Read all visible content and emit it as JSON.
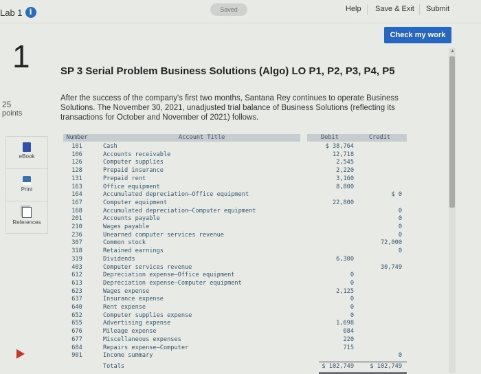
{
  "header": {
    "lab_label": "Lab 1",
    "saved_label": "Saved",
    "help_label": "Help",
    "save_exit_label": "Save & Exit",
    "submit_label": "Submit",
    "check_work_label": "Check my work"
  },
  "question": {
    "number": "1",
    "points_value": "25",
    "points_label": "points",
    "title": "SP 3 Serial Problem Business Solutions (Algo) LO P1, P2, P3, P4, P5",
    "intro": "After the success of the company's first two months, Santana Rey continues to operate Business Solutions. The November 30, 2021, unadjusted trial balance of Business Solutions (reflecting its transactions for October and November of 2021) follows."
  },
  "tools": [
    {
      "label": "eBook",
      "icon": "book-icon"
    },
    {
      "label": "Print",
      "icon": "printer-icon"
    },
    {
      "label": "References",
      "icon": "documents-icon"
    }
  ],
  "table": {
    "headers": {
      "number": "Number",
      "title": "Account Title",
      "debit": "Debit",
      "credit": "Credit"
    },
    "rows": [
      {
        "number": "101",
        "title": "Cash",
        "debit": "$ 38,764",
        "credit": ""
      },
      {
        "number": "106",
        "title": "Accounts receivable",
        "debit": "12,718",
        "credit": ""
      },
      {
        "number": "126",
        "title": "Computer supplies",
        "debit": "2,545",
        "credit": ""
      },
      {
        "number": "128",
        "title": "Prepaid insurance",
        "debit": "2,220",
        "credit": ""
      },
      {
        "number": "131",
        "title": "Prepaid rent",
        "debit": "3,160",
        "credit": ""
      },
      {
        "number": "163",
        "title": "Office equipment",
        "debit": "8,800",
        "credit": ""
      },
      {
        "number": "164",
        "title": "Accumulated depreciation—Office equipment",
        "debit": "",
        "credit": "$ 0"
      },
      {
        "number": "167",
        "title": "Computer equipment",
        "debit": "22,800",
        "credit": ""
      },
      {
        "number": "168",
        "title": "Accumulated depreciation—Computer equipment",
        "debit": "",
        "credit": "0"
      },
      {
        "number": "201",
        "title": "Accounts payable",
        "debit": "",
        "credit": "0"
      },
      {
        "number": "210",
        "title": "Wages payable",
        "debit": "",
        "credit": "0"
      },
      {
        "number": "236",
        "title": "Unearned computer services revenue",
        "debit": "",
        "credit": "0"
      },
      {
        "number": "307",
        "title": "Common stock",
        "debit": "",
        "credit": "72,000"
      },
      {
        "number": "318",
        "title": "Retained earnings",
        "debit": "",
        "credit": "0"
      },
      {
        "number": "319",
        "title": "Dividends",
        "debit": "6,300",
        "credit": ""
      },
      {
        "number": "403",
        "title": "Computer services revenue",
        "debit": "",
        "credit": "30,749"
      },
      {
        "number": "612",
        "title": "Depreciation expense—Office equipment",
        "debit": "0",
        "credit": ""
      },
      {
        "number": "613",
        "title": "Depreciation expense—Computer equipment",
        "debit": "0",
        "credit": ""
      },
      {
        "number": "623",
        "title": "Wages expense",
        "debit": "2,125",
        "credit": ""
      },
      {
        "number": "637",
        "title": "Insurance expense",
        "debit": "0",
        "credit": ""
      },
      {
        "number": "640",
        "title": "Rent expense",
        "debit": "0",
        "credit": ""
      },
      {
        "number": "652",
        "title": "Computer supplies expense",
        "debit": "0",
        "credit": ""
      },
      {
        "number": "655",
        "title": "Advertising expense",
        "debit": "1,698",
        "credit": ""
      },
      {
        "number": "676",
        "title": "Mileage expense",
        "debit": "684",
        "credit": ""
      },
      {
        "number": "677",
        "title": "Miscellaneous expenses",
        "debit": "220",
        "credit": ""
      },
      {
        "number": "684",
        "title": "Repairs expense—Computer",
        "debit": "715",
        "credit": ""
      },
      {
        "number": "901",
        "title": "Income summary",
        "debit": "",
        "credit": "0"
      }
    ],
    "totals": {
      "label": "Totals",
      "debit": "$ 102,749",
      "credit": "$ 102,749"
    }
  }
}
